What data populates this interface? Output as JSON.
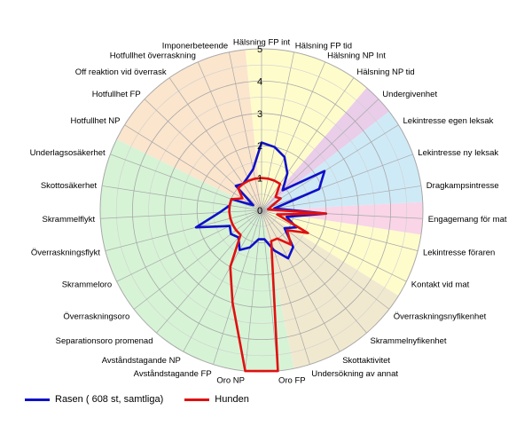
{
  "chart_data": {
    "type": "radar",
    "title": "",
    "scale": {
      "min": 0,
      "max": 5,
      "ticks": [
        0,
        1,
        2,
        3,
        4,
        5
      ]
    },
    "categories": [
      "Hälsning FP int",
      "Hälsning FP tid",
      "Hälsning NP Int",
      "Hälsning NP tid",
      "Undergivenhet",
      "Lekintresse egen leksak",
      "Lekintresse ny leksak",
      "Dragkampsintresse",
      "Engagemang för mat",
      "Lekintresse föraren",
      "Kontakt vid mat",
      "Överraskningsnyfikenhet",
      "Skrammelnyfikenhet",
      "Skottaktivitet",
      "Undersökning av annat",
      "Oro FP",
      "Oro NP",
      "Avståndstagande FP",
      "Avståndstagande NP",
      "Separationsoro promenad",
      "Överraskningsoro",
      "Skrammeloro",
      "Överraskningsflykt",
      "Skrammelflykt",
      "Skottosäkerhet",
      "Underlagsosäkerhet",
      "Hotfullhet NP",
      "Hotfullhet FP",
      "Off reaktion vid överrask",
      "Hotfullhet överraskning",
      "Imponerbeteende"
    ],
    "sectors": [
      {
        "from": 0,
        "to": 3,
        "color": "#fffccc"
      },
      {
        "from": 4,
        "to": 4,
        "color": "#e9cde9"
      },
      {
        "from": 5,
        "to": 7,
        "color": "#cfeaf7"
      },
      {
        "from": 8,
        "to": 8,
        "color": "#f9d5e7"
      },
      {
        "from": 9,
        "to": 10,
        "color": "#fffccc"
      },
      {
        "from": 11,
        "to": 14,
        "color": "#f1e9cf"
      },
      {
        "from": 15,
        "to": 25,
        "color": "#d6f3d6"
      },
      {
        "from": 26,
        "to": 30,
        "color": "#fbe5cd"
      }
    ],
    "series": [
      {
        "name": "Rasen ( 608 st, samtliga)",
        "color": "#1010c8",
        "values": [
          2.1,
          2.0,
          1.8,
          1.4,
          0.9,
          2.3,
          1.9,
          0.4,
          2.0,
          0.8,
          1.2,
          0.9,
          1.5,
          1.7,
          1.3,
          0.9,
          0.9,
          1.2,
          1.4,
          1.1,
          1.2,
          1.1,
          2.1,
          1.3,
          1.0,
          1.0,
          0.3,
          1.1,
          1.0,
          1.1,
          1.3
        ]
      },
      {
        "name": "Hunden",
        "color": "#e01010",
        "values": [
          1.0,
          1.0,
          1.0,
          1.0,
          0.6,
          0.7,
          0.3,
          0.2,
          2.0,
          0.5,
          1.6,
          1.0,
          1.4,
          1.0,
          1.0,
          5.0,
          5.0,
          3.0,
          2.0,
          1.0,
          1.0,
          1.0,
          1.0,
          1.0,
          1.0,
          1.0,
          0.7,
          1.0,
          1.0,
          1.0,
          1.0
        ]
      }
    ],
    "legend": {
      "position": "bottom-left"
    }
  }
}
